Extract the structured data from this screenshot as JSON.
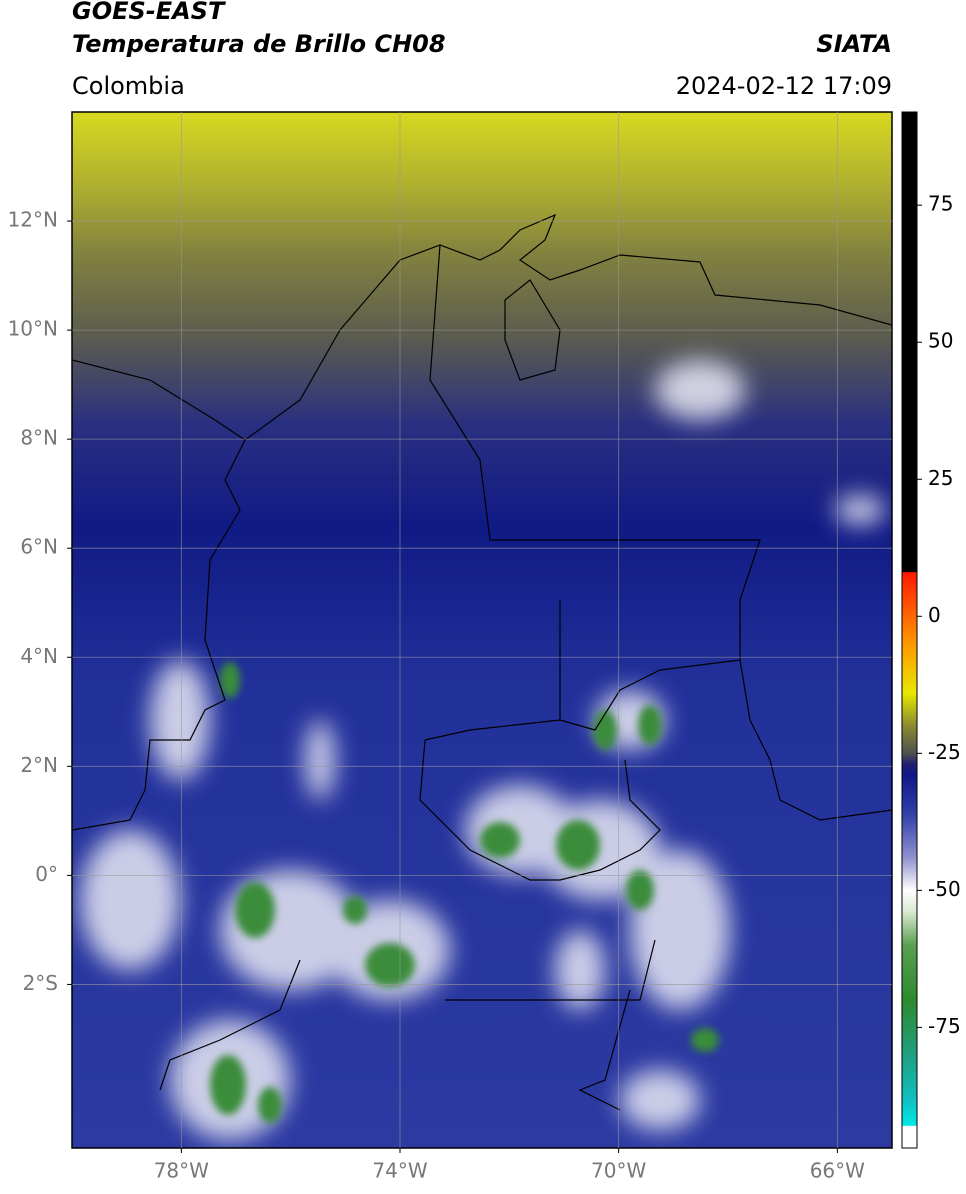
{
  "header": {
    "title_line1": "GOES-EAST",
    "title_line2": "Temperatura de Brillo CH08",
    "source": "SIATA",
    "region": "Colombia",
    "datetime": "2024-02-12 17:09"
  },
  "map": {
    "xlim": [
      -80,
      -65
    ],
    "ylim": [
      -5,
      14
    ],
    "xticks": [
      {
        "value": -78,
        "label": "78°W"
      },
      {
        "value": -74,
        "label": "74°W"
      },
      {
        "value": -70,
        "label": "70°W"
      },
      {
        "value": -66,
        "label": "66°W"
      }
    ],
    "yticks": [
      {
        "value": 12,
        "label": "12°N"
      },
      {
        "value": 10,
        "label": "10°N"
      },
      {
        "value": 8,
        "label": "8°N"
      },
      {
        "value": 6,
        "label": "6°N"
      },
      {
        "value": 4,
        "label": "4°N"
      },
      {
        "value": 2,
        "label": "2°N"
      },
      {
        "value": 0,
        "label": "0°"
      },
      {
        "value": -2,
        "label": "2°S"
      }
    ],
    "grid": true
  },
  "colorbar": {
    "lim": [
      -97,
      92
    ],
    "ticks": [
      75,
      50,
      25,
      0,
      -25,
      -50,
      -75
    ]
  }
}
